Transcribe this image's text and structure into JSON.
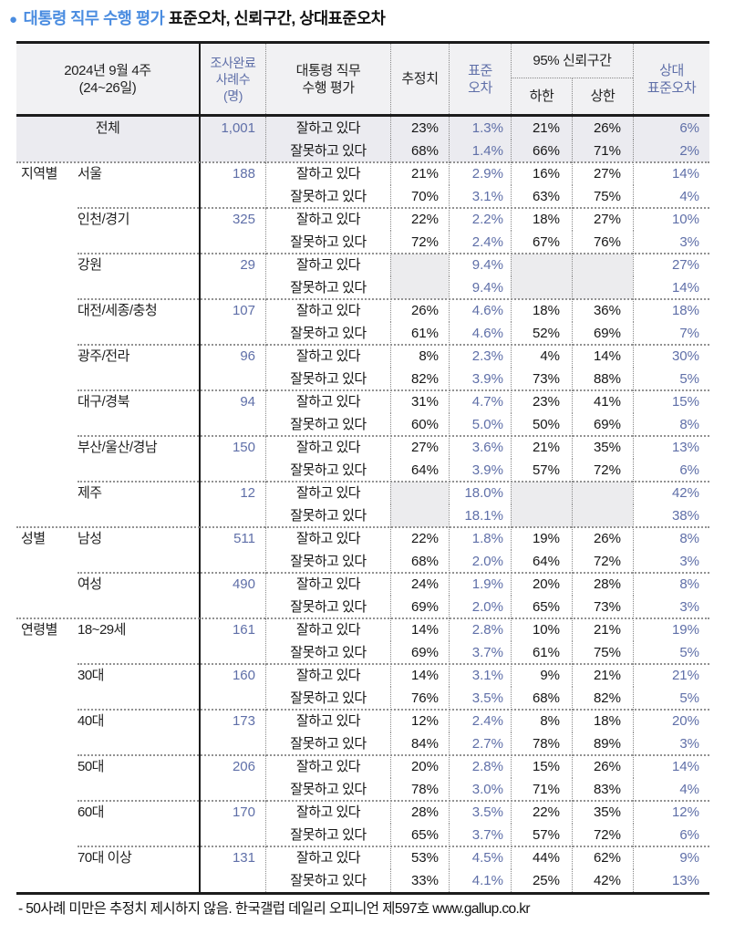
{
  "title": {
    "bullet": "●",
    "highlight": "대통령 직무 수행 평가",
    "rest": "표준오차, 신뢰구간, 상대표준오차"
  },
  "colors": {
    "title_blue": "#4a8ce0",
    "value_blue": "#5f6fa8",
    "text_dark": "#111111",
    "header_bg": "#f1f1f3",
    "total_row_bg": "#ebebf0",
    "masked_cell_bg": "#ececee"
  },
  "header": {
    "period_line1": "2024년 9월 4주",
    "period_line2": "(24~26일)",
    "cases_line1": "조사완료",
    "cases_line2": "사례수",
    "cases_line3": "(명)",
    "eval_line1": "대통령 직무",
    "eval_line2": "수행 평가",
    "estimate": "추정치",
    "se_line1": "표준",
    "se_line2": "오차",
    "ci": "95% 신뢰구간",
    "ci_low": "하한",
    "ci_high": "상한",
    "rse_line1": "상대",
    "rse_line2": "표준오차"
  },
  "table": {
    "groups": [
      {
        "group": "",
        "label": "전체",
        "n": "1,001",
        "shade": true,
        "center": true,
        "rows": [
          {
            "eval": "잘하고 있다",
            "est": "23%",
            "se": "1.3%",
            "low": "21%",
            "high": "26%",
            "rse": "6%"
          },
          {
            "eval": "잘못하고 있다",
            "est": "68%",
            "se": "1.4%",
            "low": "66%",
            "high": "71%",
            "rse": "2%"
          }
        ]
      },
      {
        "group": "지역별",
        "label": "서울",
        "n": "188",
        "section": true,
        "rows": [
          {
            "eval": "잘하고 있다",
            "est": "21%",
            "se": "2.9%",
            "low": "16%",
            "high": "27%",
            "rse": "14%"
          },
          {
            "eval": "잘못하고 있다",
            "est": "70%",
            "se": "3.1%",
            "low": "63%",
            "high": "75%",
            "rse": "4%"
          }
        ]
      },
      {
        "group": "",
        "label": "인천/경기",
        "n": "325",
        "rows": [
          {
            "eval": "잘하고 있다",
            "est": "22%",
            "se": "2.2%",
            "low": "18%",
            "high": "27%",
            "rse": "10%"
          },
          {
            "eval": "잘못하고 있다",
            "est": "72%",
            "se": "2.4%",
            "low": "67%",
            "high": "76%",
            "rse": "3%"
          }
        ]
      },
      {
        "group": "",
        "label": "강원",
        "n": "29",
        "rows": [
          {
            "eval": "잘하고 있다",
            "est": "",
            "se": "9.4%",
            "low": "",
            "high": "",
            "rse": "27%",
            "masked": true
          },
          {
            "eval": "잘못하고 있다",
            "est": "",
            "se": "9.4%",
            "low": "",
            "high": "",
            "rse": "14%",
            "masked": true
          }
        ]
      },
      {
        "group": "",
        "label": "대전/세종/충청",
        "n": "107",
        "rows": [
          {
            "eval": "잘하고 있다",
            "est": "26%",
            "se": "4.6%",
            "low": "18%",
            "high": "36%",
            "rse": "18%"
          },
          {
            "eval": "잘못하고 있다",
            "est": "61%",
            "se": "4.6%",
            "low": "52%",
            "high": "69%",
            "rse": "7%"
          }
        ]
      },
      {
        "group": "",
        "label": "광주/전라",
        "n": "96",
        "rows": [
          {
            "eval": "잘하고 있다",
            "est": "8%",
            "se": "2.3%",
            "low": "4%",
            "high": "14%",
            "rse": "30%"
          },
          {
            "eval": "잘못하고 있다",
            "est": "82%",
            "se": "3.9%",
            "low": "73%",
            "high": "88%",
            "rse": "5%"
          }
        ]
      },
      {
        "group": "",
        "label": "대구/경북",
        "n": "94",
        "rows": [
          {
            "eval": "잘하고 있다",
            "est": "31%",
            "se": "4.7%",
            "low": "23%",
            "high": "41%",
            "rse": "15%"
          },
          {
            "eval": "잘못하고 있다",
            "est": "60%",
            "se": "5.0%",
            "low": "50%",
            "high": "69%",
            "rse": "8%"
          }
        ]
      },
      {
        "group": "",
        "label": "부산/울산/경남",
        "n": "150",
        "rows": [
          {
            "eval": "잘하고 있다",
            "est": "27%",
            "se": "3.6%",
            "low": "21%",
            "high": "35%",
            "rse": "13%"
          },
          {
            "eval": "잘못하고 있다",
            "est": "64%",
            "se": "3.9%",
            "low": "57%",
            "high": "72%",
            "rse": "6%"
          }
        ]
      },
      {
        "group": "",
        "label": "제주",
        "n": "12",
        "rows": [
          {
            "eval": "잘하고 있다",
            "est": "",
            "se": "18.0%",
            "low": "",
            "high": "",
            "rse": "42%",
            "masked": true
          },
          {
            "eval": "잘못하고 있다",
            "est": "",
            "se": "18.1%",
            "low": "",
            "high": "",
            "rse": "38%",
            "masked": true
          }
        ]
      },
      {
        "group": "성별",
        "label": "남성",
        "n": "511",
        "section": true,
        "rows": [
          {
            "eval": "잘하고 있다",
            "est": "22%",
            "se": "1.8%",
            "low": "19%",
            "high": "26%",
            "rse": "8%"
          },
          {
            "eval": "잘못하고 있다",
            "est": "68%",
            "se": "2.0%",
            "low": "64%",
            "high": "72%",
            "rse": "3%"
          }
        ]
      },
      {
        "group": "",
        "label": "여성",
        "n": "490",
        "rows": [
          {
            "eval": "잘하고 있다",
            "est": "24%",
            "se": "1.9%",
            "low": "20%",
            "high": "28%",
            "rse": "8%"
          },
          {
            "eval": "잘못하고 있다",
            "est": "69%",
            "se": "2.0%",
            "low": "65%",
            "high": "73%",
            "rse": "3%"
          }
        ]
      },
      {
        "group": "연령별",
        "label": "18~29세",
        "n": "161",
        "section": true,
        "rows": [
          {
            "eval": "잘하고 있다",
            "est": "14%",
            "se": "2.8%",
            "low": "10%",
            "high": "21%",
            "rse": "19%"
          },
          {
            "eval": "잘못하고 있다",
            "est": "69%",
            "se": "3.7%",
            "low": "61%",
            "high": "75%",
            "rse": "5%"
          }
        ]
      },
      {
        "group": "",
        "label": "30대",
        "n": "160",
        "rows": [
          {
            "eval": "잘하고 있다",
            "est": "14%",
            "se": "3.1%",
            "low": "9%",
            "high": "21%",
            "rse": "21%"
          },
          {
            "eval": "잘못하고 있다",
            "est": "76%",
            "se": "3.5%",
            "low": "68%",
            "high": "82%",
            "rse": "5%"
          }
        ]
      },
      {
        "group": "",
        "label": "40대",
        "n": "173",
        "rows": [
          {
            "eval": "잘하고 있다",
            "est": "12%",
            "se": "2.4%",
            "low": "8%",
            "high": "18%",
            "rse": "20%"
          },
          {
            "eval": "잘못하고 있다",
            "est": "84%",
            "se": "2.7%",
            "low": "78%",
            "high": "89%",
            "rse": "3%"
          }
        ]
      },
      {
        "group": "",
        "label": "50대",
        "n": "206",
        "rows": [
          {
            "eval": "잘하고 있다",
            "est": "20%",
            "se": "2.8%",
            "low": "15%",
            "high": "26%",
            "rse": "14%"
          },
          {
            "eval": "잘못하고 있다",
            "est": "78%",
            "se": "3.0%",
            "low": "71%",
            "high": "83%",
            "rse": "4%"
          }
        ]
      },
      {
        "group": "",
        "label": "60대",
        "n": "170",
        "rows": [
          {
            "eval": "잘하고 있다",
            "est": "28%",
            "se": "3.5%",
            "low": "22%",
            "high": "35%",
            "rse": "12%"
          },
          {
            "eval": "잘못하고 있다",
            "est": "65%",
            "se": "3.7%",
            "low": "57%",
            "high": "72%",
            "rse": "6%"
          }
        ]
      },
      {
        "group": "",
        "label": "70대 이상",
        "n": "131",
        "rows": [
          {
            "eval": "잘하고 있다",
            "est": "53%",
            "se": "4.5%",
            "low": "44%",
            "high": "62%",
            "rse": "9%"
          },
          {
            "eval": "잘못하고 있다",
            "est": "33%",
            "se": "4.1%",
            "low": "25%",
            "high": "42%",
            "rse": "13%"
          }
        ]
      }
    ]
  },
  "footer": {
    "note": "- 50사례 미만은 추정치 제시하지 않음. 한국갤럽 데일리 오피니언 제597호 www.gallup.co.kr"
  }
}
